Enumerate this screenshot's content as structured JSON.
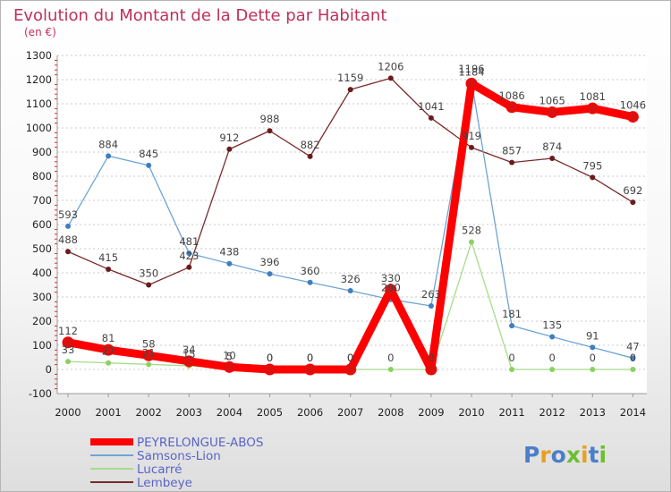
{
  "chart_data": {
    "type": "line",
    "title": "Evolution du Montant de la Dette par Habitant",
    "subtitle": "(en €)",
    "x": [
      "2000",
      "2001",
      "2002",
      "2003",
      "2004",
      "2005",
      "2006",
      "2007",
      "2008",
      "2009",
      "2010",
      "2011",
      "2012",
      "2013",
      "2014"
    ],
    "ylim": [
      -100,
      1300
    ],
    "yticks": [
      -100,
      0,
      100,
      200,
      300,
      400,
      500,
      600,
      700,
      800,
      900,
      1000,
      1100,
      1200,
      1300
    ],
    "grid": "y-dashed",
    "legend_position": "bottom-left",
    "series": [
      {
        "name": "PEYRELONGUE-ABOS",
        "color": "#ff0000",
        "marker": "#dd1010",
        "width": 9,
        "values": [
          112,
          81,
          58,
          34,
          10,
          0,
          0,
          0,
          330,
          0,
          1184,
          1086,
          1065,
          1081,
          1046
        ],
        "labels": [
          "112",
          "81",
          "58",
          "34",
          "10",
          "0",
          "0",
          "0",
          "330",
          "0",
          "1184",
          "1086",
          "1065",
          "1081",
          "1046"
        ]
      },
      {
        "name": "Samsons-Lion",
        "color": "#6ea4d4",
        "marker": "#3f7ec0",
        "width": 1.3,
        "values": [
          593,
          884,
          845,
          481,
          438,
          396,
          360,
          326,
          290,
          263,
          1196,
          181,
          135,
          91,
          47
        ],
        "labels": [
          "593",
          "884",
          "845",
          "481",
          "438",
          "396",
          "360",
          "326",
          "290",
          "263",
          "1196",
          "181",
          "135",
          "91",
          "47"
        ]
      },
      {
        "name": "Lucarré",
        "color": "#a8dc8a",
        "marker": "#8cd062",
        "width": 1.3,
        "values": [
          33,
          27,
          21,
          15,
          5,
          0,
          0,
          0,
          0,
          0,
          528,
          0,
          0,
          0,
          0
        ],
        "labels": [
          "33",
          "27",
          "21",
          "15",
          "5",
          "0",
          "0",
          "0",
          "0",
          "0",
          "528",
          "0",
          "0",
          "0",
          "0"
        ]
      },
      {
        "name": "Lembeye",
        "color": "#7a2a2a",
        "marker": "#6a1c1c",
        "width": 1.3,
        "values": [
          488,
          415,
          350,
          423,
          912,
          988,
          882,
          1159,
          1206,
          1041,
          919,
          857,
          874,
          795,
          692
        ],
        "labels": [
          "488",
          "415",
          "350",
          "423",
          "912",
          "988",
          "882",
          "1159",
          "1206",
          "1041",
          "919",
          "857",
          "874",
          "795",
          "692"
        ]
      }
    ]
  },
  "logo": {
    "text": "Proxiti",
    "colors": [
      "#4a7fc8",
      "#e8a020",
      "#4a7fc8",
      "#6cbf2e",
      "#e8a020",
      "#4a7fc8",
      "#6cbf2e"
    ]
  }
}
